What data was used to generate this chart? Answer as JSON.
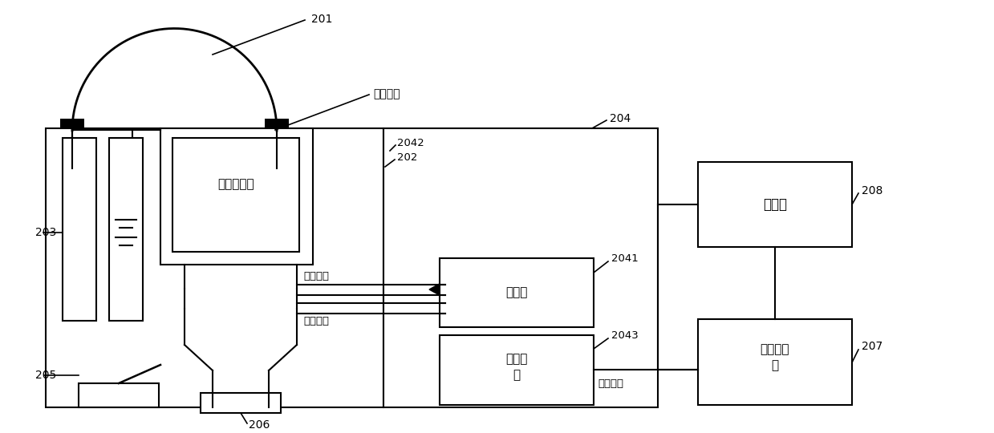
{
  "bg": "#ffffff",
  "lc": "#000000",
  "lw": 1.5,
  "fs": 10,
  "labels": {
    "201": "201",
    "202": "202",
    "2042": "2042",
    "203": "203",
    "204": "204",
    "205": "205",
    "206": "206",
    "2041": "2041",
    "2043": "2043",
    "207": "207",
    "208": "208",
    "insulation": "绝缘材料",
    "eo_sensor": "电光传感器",
    "multimode1": "多模光纤",
    "multimode2": "多模光纤",
    "laser": "激光源",
    "demod_line1": "解调电",
    "demod_line2": "路",
    "computer": "计算机",
    "daq_line1": "高速采集",
    "daq_line2": "卡",
    "rf_cable": "射频电缆"
  }
}
